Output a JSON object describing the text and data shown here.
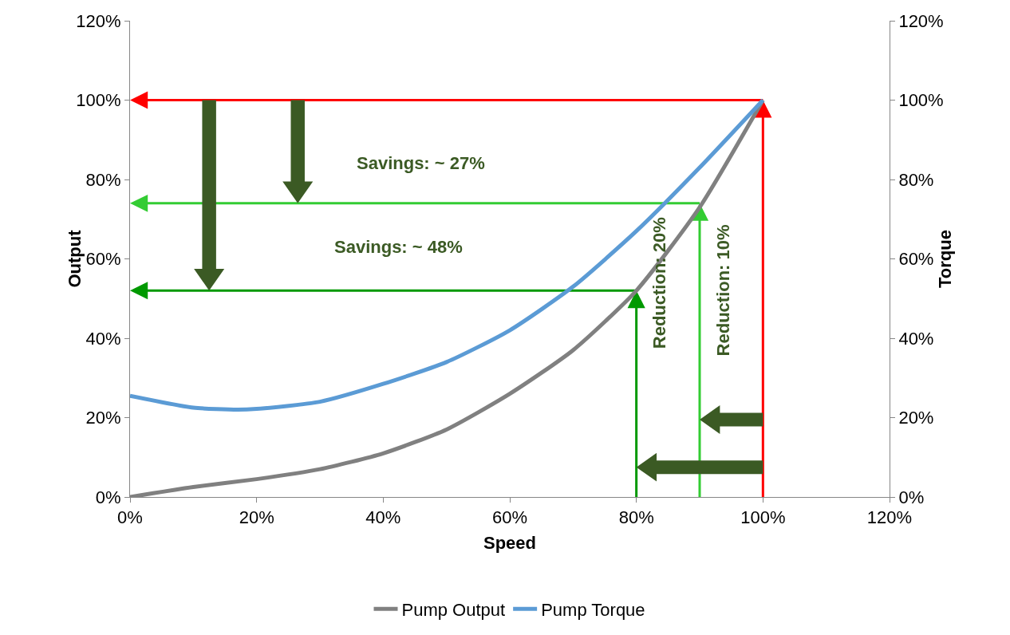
{
  "chart_data": {
    "type": "line",
    "xlabel": "Speed",
    "ylabel": "Output",
    "y2label": "Torque",
    "x": [
      0,
      10,
      20,
      30,
      40,
      50,
      60,
      70,
      80,
      90,
      100
    ],
    "series": [
      {
        "name": "Pump Output",
        "color": "#808080",
        "values": [
          0,
          2.5,
          4.5,
          7,
          11,
          17,
          26,
          37,
          52,
          73,
          100
        ]
      },
      {
        "name": "Pump Torque",
        "color": "#5b9bd5",
        "axis": "y2",
        "x": [
          0,
          10,
          17,
          20,
          30,
          40,
          50,
          60,
          70,
          80,
          90,
          100
        ],
        "values": [
          25.5,
          22.5,
          22,
          22.2,
          24,
          28.5,
          34,
          42,
          53,
          67,
          83,
          100
        ]
      }
    ],
    "annotations": [
      "Savings: ~ 27%",
      "Savings: ~ 48%",
      "Reduction: 20%",
      "Reduction: 10%"
    ],
    "xlim": [
      0,
      120
    ],
    "xticks": [
      {
        "value": 0,
        "label": "0%"
      },
      {
        "value": 20,
        "label": "20%"
      },
      {
        "value": 40,
        "label": "40%"
      },
      {
        "value": 60,
        "label": "60%"
      },
      {
        "value": 80,
        "label": "80%"
      },
      {
        "value": 100,
        "label": "100%"
      },
      {
        "value": 120,
        "label": "120%"
      }
    ],
    "ylim": [
      0,
      120
    ],
    "yticks": [
      {
        "value": 0,
        "label": "0%"
      },
      {
        "value": 20,
        "label": "20%"
      },
      {
        "value": 40,
        "label": "40%"
      },
      {
        "value": 60,
        "label": "60%"
      },
      {
        "value": 80,
        "label": "80%"
      },
      {
        "value": 100,
        "label": "100%"
      },
      {
        "value": 120,
        "label": "120%"
      }
    ],
    "y2lim": [
      0,
      120
    ],
    "y2ticks": [
      {
        "value": 0,
        "label": "0%"
      },
      {
        "value": 20,
        "label": "20%"
      },
      {
        "value": 40,
        "label": "40%"
      },
      {
        "value": 60,
        "label": "60%"
      },
      {
        "value": 80,
        "label": "80%"
      },
      {
        "value": 100,
        "label": "100%"
      },
      {
        "value": 120,
        "label": "120%"
      }
    ],
    "grid": false,
    "legend": "bottom",
    "marker": "none",
    "line_style": "solid"
  }
}
